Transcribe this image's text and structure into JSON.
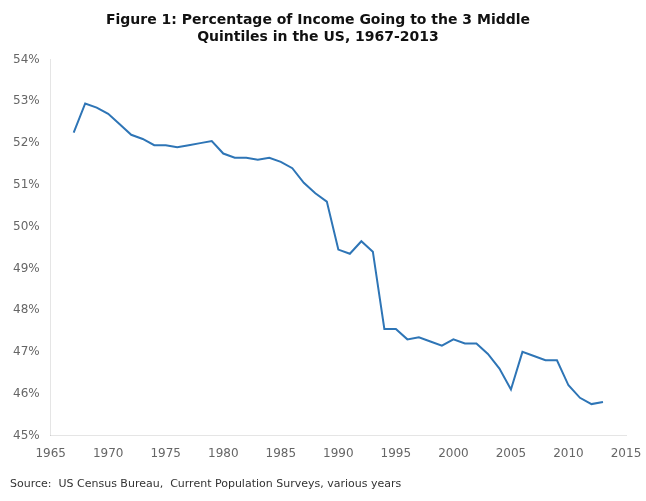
{
  "chart_data": {
    "type": "line",
    "title": "Figure 1: Percentage of Income Going to the 3 Middle\nQuintiles in the US, 1967-2013",
    "annotations": [
      "Source:  US Census Bureau,  Current Population Surveys, various years"
    ],
    "color": "#2E75B6",
    "grid": false,
    "x": [
      1967,
      1968,
      1969,
      1970,
      1971,
      1972,
      1973,
      1974,
      1975,
      1976,
      1977,
      1978,
      1979,
      1980,
      1981,
      1982,
      1983,
      1984,
      1985,
      1986,
      1987,
      1988,
      1989,
      1990,
      1991,
      1992,
      1993,
      1994,
      1995,
      1996,
      1997,
      1998,
      1999,
      2000,
      2001,
      2002,
      2003,
      2004,
      2005,
      2006,
      2007,
      2008,
      2009,
      2010,
      2011,
      2012,
      2013
    ],
    "values": [
      0.5225,
      0.5295,
      0.5285,
      0.527,
      0.5245,
      0.522,
      0.521,
      0.5195,
      0.5195,
      0.519,
      0.5195,
      0.52,
      0.5205,
      0.5175,
      0.5165,
      0.5165,
      0.516,
      0.5165,
      0.5155,
      0.514,
      0.5105,
      0.508,
      0.506,
      0.4945,
      0.4935,
      0.4965,
      0.494,
      0.4755,
      0.4755,
      0.473,
      0.4735,
      0.4725,
      0.4715,
      0.473,
      0.472,
      0.472,
      0.4695,
      0.466,
      0.461,
      0.47,
      0.469,
      0.468,
      0.468,
      0.462,
      0.459,
      0.4575,
      0.458
    ],
    "xlim": [
      1965,
      2015
    ],
    "xticks": [
      1965,
      1970,
      1975,
      1980,
      1985,
      1990,
      1995,
      2000,
      2005,
      2010,
      2015
    ],
    "ylim": [
      0.45,
      0.54
    ],
    "yticks": [
      {
        "value": 0.45,
        "label": "45%"
      },
      {
        "value": 0.46,
        "label": "46%"
      },
      {
        "value": 0.47,
        "label": "47%"
      },
      {
        "value": 0.48,
        "label": "48%"
      },
      {
        "value": 0.49,
        "label": "49%"
      },
      {
        "value": 0.5,
        "label": "50%"
      },
      {
        "value": 0.51,
        "label": "51%"
      },
      {
        "value": 0.52,
        "label": "52%"
      },
      {
        "value": 0.53,
        "label": "53%"
      },
      {
        "value": 0.54,
        "label": "54%"
      }
    ]
  }
}
